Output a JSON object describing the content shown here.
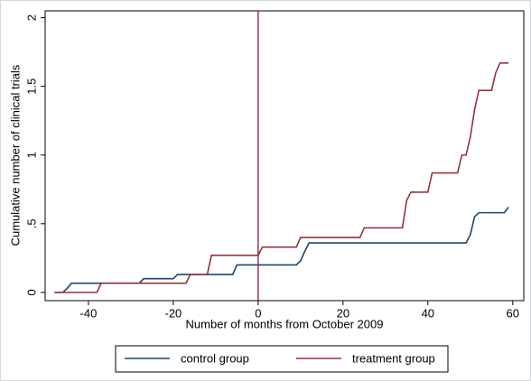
{
  "chart_data": {
    "type": "line",
    "xlabel": "Number of months from October 2009",
    "ylabel": "Cumulative number of clinical trials",
    "xlim": [
      -50.2,
      62.6
    ],
    "ylim": [
      -0.06,
      2.05
    ],
    "xticks": [
      -40,
      -20,
      0,
      20,
      40,
      60
    ],
    "yticks": [
      0,
      {
        "value": 0.5,
        "label": ".5"
      },
      1,
      1.5,
      2
    ],
    "vline": 0,
    "vline_color": "#8b1a2a",
    "legend": "bottom",
    "series": [
      {
        "name": "control group",
        "color": "#1a476f",
        "x": [
          -48,
          -46,
          -45,
          -44,
          -28,
          -27,
          -20,
          -19,
          -6,
          -5,
          9,
          10,
          11,
          12,
          49,
          50,
          51,
          52,
          58,
          59
        ],
        "values": [
          0,
          0,
          0.03,
          0.067,
          0.067,
          0.1,
          0.1,
          0.13,
          0.13,
          0.2,
          0.2,
          0.23,
          0.3,
          0.36,
          0.36,
          0.42,
          0.55,
          0.58,
          0.58,
          0.62
        ]
      },
      {
        "name": "treatment group",
        "color": "#90353b",
        "x": [
          -48,
          -38,
          -37,
          -17,
          -16,
          -12,
          -11,
          0,
          1,
          9,
          10,
          24,
          25,
          34,
          35,
          36,
          40,
          41,
          47,
          48,
          49,
          50,
          51,
          52,
          55,
          56,
          57,
          59
        ],
        "values": [
          0,
          0,
          0.067,
          0.067,
          0.13,
          0.13,
          0.27,
          0.27,
          0.33,
          0.33,
          0.4,
          0.4,
          0.47,
          0.47,
          0.67,
          0.73,
          0.73,
          0.87,
          0.87,
          1.0,
          1.0,
          1.13,
          1.33,
          1.47,
          1.47,
          1.6,
          1.67,
          1.67
        ]
      }
    ]
  }
}
